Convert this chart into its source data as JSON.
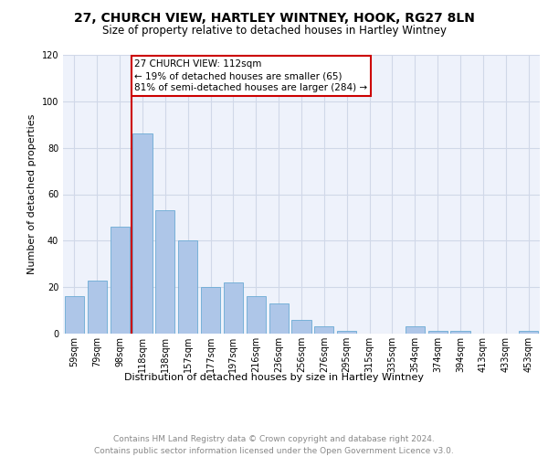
{
  "title1": "27, CHURCH VIEW, HARTLEY WINTNEY, HOOK, RG27 8LN",
  "title2": "Size of property relative to detached houses in Hartley Wintney",
  "xlabel": "Distribution of detached houses by size in Hartley Wintney",
  "ylabel": "Number of detached properties",
  "categories": [
    "59sqm",
    "79sqm",
    "98sqm",
    "118sqm",
    "138sqm",
    "157sqm",
    "177sqm",
    "197sqm",
    "216sqm",
    "236sqm",
    "256sqm",
    "276sqm",
    "295sqm",
    "315sqm",
    "335sqm",
    "354sqm",
    "374sqm",
    "394sqm",
    "413sqm",
    "433sqm",
    "453sqm"
  ],
  "values": [
    16,
    23,
    46,
    86,
    53,
    40,
    20,
    22,
    16,
    13,
    6,
    3,
    1,
    0,
    0,
    3,
    1,
    1,
    0,
    0,
    1
  ],
  "bar_color": "#aec6e8",
  "bar_edge_color": "#6aaad4",
  "vline_x_index": 3,
  "vline_color": "#cc0000",
  "annotation_text": "27 CHURCH VIEW: 112sqm\n← 19% of detached houses are smaller (65)\n81% of semi-detached houses are larger (284) →",
  "annotation_box_color": "#ffffff",
  "annotation_box_edge_color": "#cc0000",
  "ylim": [
    0,
    120
  ],
  "yticks": [
    0,
    20,
    40,
    60,
    80,
    100,
    120
  ],
  "grid_color": "#d0d8e8",
  "background_color": "#eef2fb",
  "footer_text": "Contains HM Land Registry data © Crown copyright and database right 2024.\nContains public sector information licensed under the Open Government Licence v3.0.",
  "title1_fontsize": 10,
  "title2_fontsize": 8.5,
  "xlabel_fontsize": 8,
  "ylabel_fontsize": 8,
  "tick_fontsize": 7,
  "annotation_fontsize": 7.5,
  "footer_fontsize": 6.5
}
